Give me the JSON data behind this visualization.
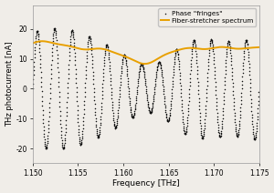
{
  "title": "",
  "xlabel": "Frequency [THz]",
  "ylabel": "THz photocurrent [nA]",
  "xlim": [
    1.15,
    1.175
  ],
  "ylim": [
    -25,
    28
  ],
  "yticks": [
    -20,
    -10,
    0,
    10,
    20
  ],
  "xticks": [
    1.15,
    1.155,
    1.16,
    1.165,
    1.17,
    1.175
  ],
  "legend": [
    "Phase \"fringes\"",
    "Fiber-stretcher spectrum"
  ],
  "black_color": "#111111",
  "orange_color": "#E8A000",
  "bg_color": "#f0ede8",
  "fringe_amplitude_base": 17.5,
  "fringe_freq": 520,
  "envelope_base": 14.0,
  "figsize": [
    3.0,
    2.12
  ],
  "dpi": 100
}
